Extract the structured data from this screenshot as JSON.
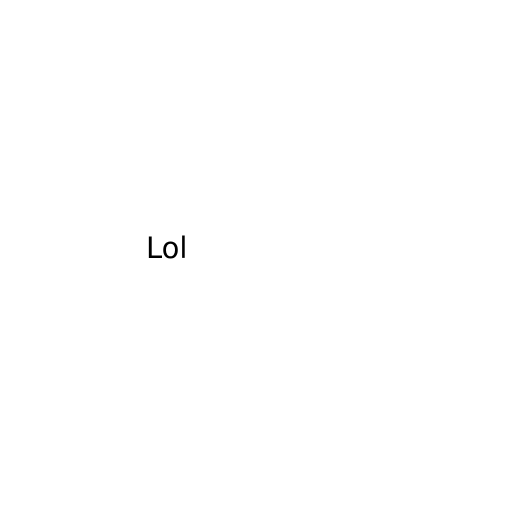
{
  "text": "Lol",
  "colors": {
    "background": "#ffffff",
    "text": "#000000"
  }
}
